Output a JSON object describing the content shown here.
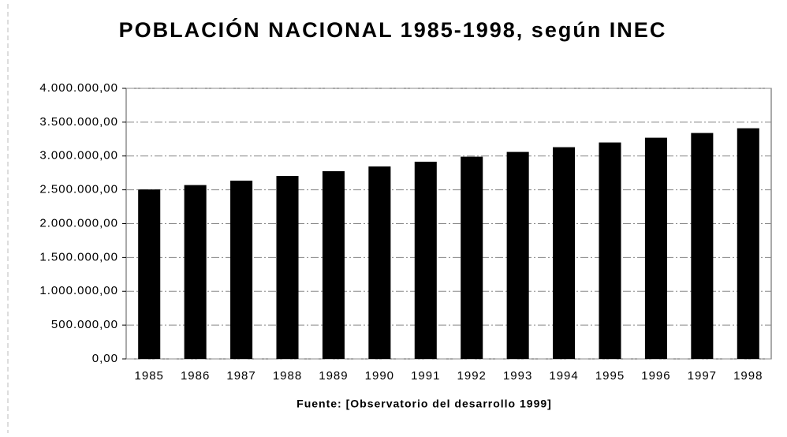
{
  "chart_data": {
    "type": "bar",
    "title": "POBLACIÓN NACIONAL 1985-1998, según INEC",
    "source": "Fuente: [Observatorio del desarrollo 1999]",
    "categories": [
      "1985",
      "1986",
      "1987",
      "1988",
      "1989",
      "1990",
      "1991",
      "1992",
      "1993",
      "1994",
      "1995",
      "1996",
      "1997",
      "1998"
    ],
    "values": [
      2505000,
      2570000,
      2635000,
      2705000,
      2775000,
      2845000,
      2915000,
      2990000,
      3060000,
      3130000,
      3200000,
      3270000,
      3340000,
      3410000
    ],
    "color": "#000000",
    "ylim": [
      0,
      4000000
    ],
    "yticks": [
      {
        "value": 0,
        "label": "0,00"
      },
      {
        "value": 500000,
        "label": "500.000,00"
      },
      {
        "value": 1000000,
        "label": "1.000.000,00"
      },
      {
        "value": 1500000,
        "label": "1.500.000,00"
      },
      {
        "value": 2000000,
        "label": "2.000.000,00"
      },
      {
        "value": 2500000,
        "label": "2.500.000,00"
      },
      {
        "value": 3000000,
        "label": "3.000.000,00"
      },
      {
        "value": 3500000,
        "label": "3.500.000,00"
      },
      {
        "value": 4000000,
        "label": "4.000.000,00"
      }
    ],
    "grid": true
  }
}
